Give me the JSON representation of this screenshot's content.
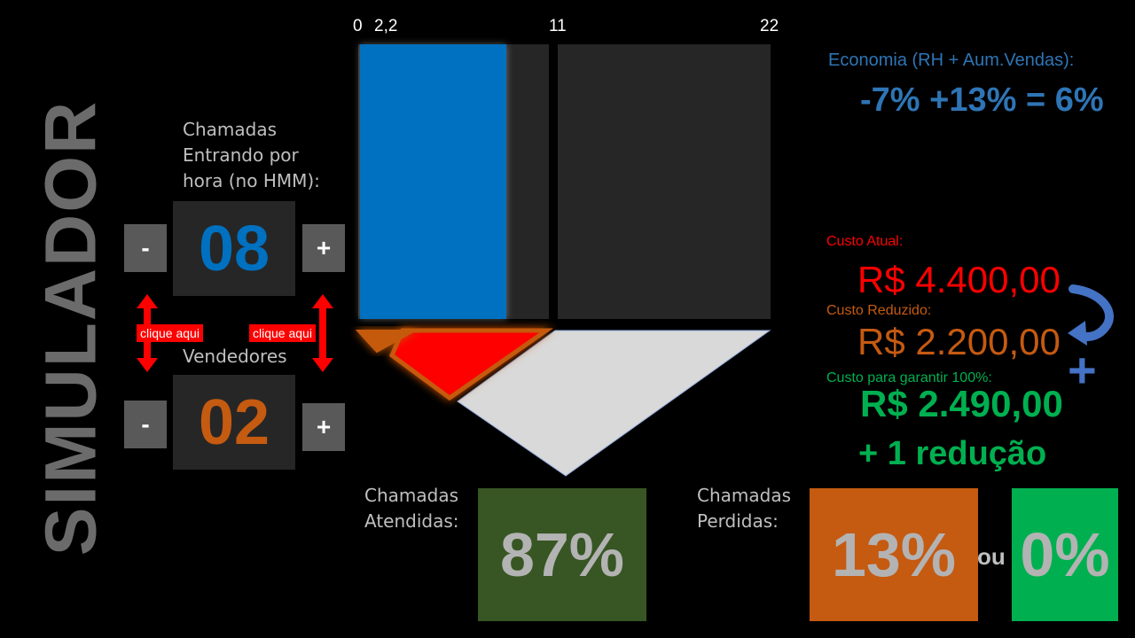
{
  "title": "SIMULADOR",
  "calls": {
    "label_lines": [
      "Chamadas",
      "Entrando por",
      "hora (no HMM):"
    ],
    "value": "08",
    "minus_label": "-",
    "plus_label": "+"
  },
  "sellers": {
    "label": "Vendedores",
    "value": "02",
    "minus_label": "-",
    "plus_label": "+"
  },
  "hints": {
    "left": "clique aqui",
    "right": "clique aqui"
  },
  "scale_ticks": [
    "0",
    "2,2",
    "11",
    "22"
  ],
  "economy": {
    "label": "Economia (RH + Aum.Vendas):",
    "value": "-7% +13% = 6%"
  },
  "costs": {
    "current_label": "Custo Atual:",
    "current_value": "R$ 4.400,00",
    "reduced_label": "Custo Reduzido:",
    "reduced_value": "R$ 2.200,00",
    "guarantee_label": "Custo para garantir 100%:",
    "guarantee_value": "R$ 2.490,00",
    "extra": "+ 1 redução",
    "plus_symbol": "+"
  },
  "answered": {
    "label_lines": [
      "Chamadas",
      "Atendidas:"
    ],
    "value": "87%"
  },
  "lost": {
    "label_lines": [
      "Chamadas",
      "Perdidas:"
    ],
    "value": "13%",
    "or_label": "ou",
    "alt_value": "0%"
  },
  "colors": {
    "blue": "#0070c0",
    "orange": "#c55a11",
    "red": "#ff0000",
    "green": "#00b050",
    "dark_green": "#375623",
    "gray_panel": "#262626"
  }
}
